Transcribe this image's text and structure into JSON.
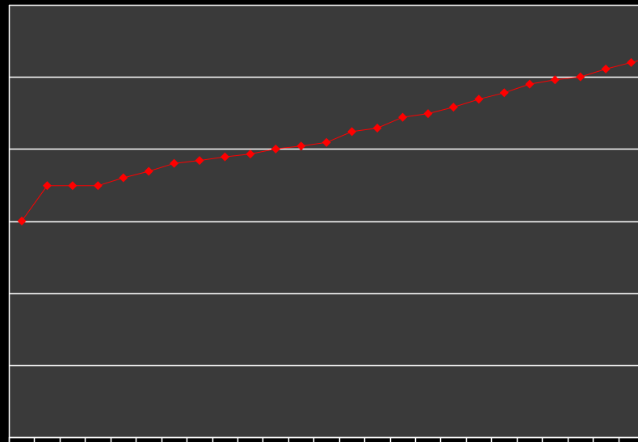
{
  "chart_data": {
    "type": "line",
    "title": "",
    "xlabel": "",
    "ylabel": "",
    "x": [
      1,
      2,
      3,
      4,
      5,
      6,
      7,
      8,
      9,
      10,
      11,
      12,
      13,
      14,
      15,
      16,
      17,
      18,
      19,
      20,
      21,
      22,
      23,
      24,
      25,
      26
    ],
    "series": [
      {
        "values": [
          3.0,
          3.49,
          3.49,
          3.49,
          3.6,
          3.69,
          3.8,
          3.84,
          3.89,
          3.93,
          4.0,
          4.04,
          4.09,
          4.24,
          4.29,
          4.44,
          4.49,
          4.58,
          4.69,
          4.78,
          4.9,
          4.96,
          5.0,
          5.11,
          5.2,
          5.29
        ]
      }
    ],
    "ylim": [
      0,
      6
    ],
    "gridlines": "horizontal",
    "legend": "none",
    "tick_labels_visible": false,
    "colors": {
      "page_background": "#000000",
      "plot_background": "#3a3a3a",
      "grid": "#ffffff",
      "axis": "#ffffff",
      "series_line": "#ff0000",
      "series_marker": "#ff0000"
    },
    "marker": "diamond"
  }
}
